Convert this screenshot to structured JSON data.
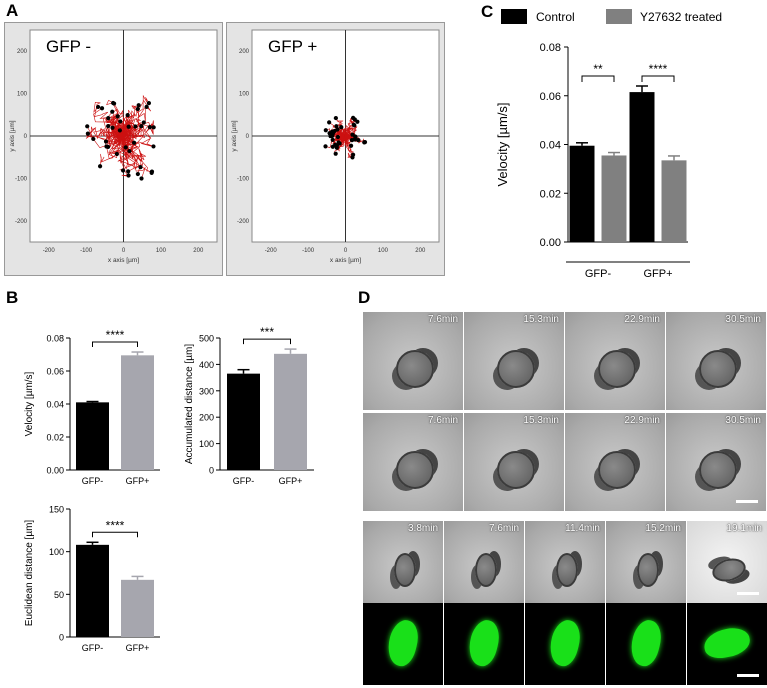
{
  "panels": {
    "a": "A",
    "b": "B",
    "c": "C",
    "d": "D"
  },
  "track_plots": [
    {
      "label": "GFP -",
      "x_axis": "x axis [µm]",
      "y_axis": "y axis [µm]",
      "ticks_x": [
        "-200",
        "-100",
        "0",
        "100",
        "200"
      ],
      "ticks_y": [
        "200",
        "100",
        "0",
        "-100",
        "-200"
      ],
      "spread": 95,
      "tracks": 42
    },
    {
      "label": "GFP +",
      "x_axis": "x axis [µm]",
      "y_axis": "y axis [µm]",
      "ticks_x": [
        "-200",
        "-100",
        "0",
        "100",
        "200"
      ],
      "ticks_y": [
        "200",
        "100",
        "0",
        "-100",
        "-200"
      ],
      "spread": 45,
      "tracks": 38
    }
  ],
  "colors": {
    "control": "#000000",
    "treated": "#808080",
    "gfp_plus": "#a6a6ae",
    "track": "#cc1111",
    "green": "#19e019"
  },
  "chart_data": [
    {
      "type": "bar",
      "id": "C",
      "legend": [
        "Control",
        "Y27632 treated"
      ],
      "categories": [
        "GFP-",
        "GFP+"
      ],
      "series": [
        {
          "name": "Control",
          "values": [
            0.0395,
            0.0615
          ],
          "errors": [
            0.0012,
            0.0025
          ]
        },
        {
          "name": "Y27632 treated",
          "values": [
            0.0355,
            0.0335
          ],
          "errors": [
            0.0012,
            0.0018
          ]
        }
      ],
      "ylabel": "Velocity [µm/s]",
      "ylim": [
        0,
        0.08
      ],
      "yticks": [
        "0.00",
        "0.02",
        "0.04",
        "0.06",
        "0.08"
      ],
      "significance": [
        "**",
        "****"
      ]
    },
    {
      "type": "bar",
      "id": "B-velocity",
      "categories": [
        "GFP-",
        "GFP+"
      ],
      "values": [
        0.041,
        0.0695
      ],
      "errors": [
        0.0005,
        0.002
      ],
      "ylabel": "Velocity [µm/s]",
      "ylim": [
        0,
        0.08
      ],
      "yticks": [
        "0.00",
        "0.02",
        "0.04",
        "0.06",
        "0.08"
      ],
      "significance": "****"
    },
    {
      "type": "bar",
      "id": "B-accumulated",
      "categories": [
        "GFP-",
        "GFP+"
      ],
      "values": [
        365,
        440
      ],
      "errors": [
        15,
        18
      ],
      "ylabel": "Accumulated distance [µm]",
      "ylim": [
        0,
        500
      ],
      "yticks": [
        "0",
        "100",
        "200",
        "300",
        "400",
        "500"
      ],
      "significance": "***"
    },
    {
      "type": "bar",
      "id": "B-euclidean",
      "categories": [
        "GFP-",
        "GFP+"
      ],
      "values": [
        108,
        67
      ],
      "errors": [
        3,
        4
      ],
      "ylabel": "Euclidean distance [µm]",
      "ylim": [
        0,
        150
      ],
      "yticks": [
        "0",
        "50",
        "100",
        "150"
      ],
      "significance": "****"
    }
  ],
  "timelapse": {
    "row1": [
      "7.6min",
      "15.3min",
      "22.9min",
      "30.5min"
    ],
    "row2": [
      "7.6min",
      "15.3min",
      "22.9min",
      "30.5min"
    ],
    "row3": [
      "3.8min",
      "7.6min",
      "11.4min",
      "15.2min",
      "19.1min"
    ]
  }
}
